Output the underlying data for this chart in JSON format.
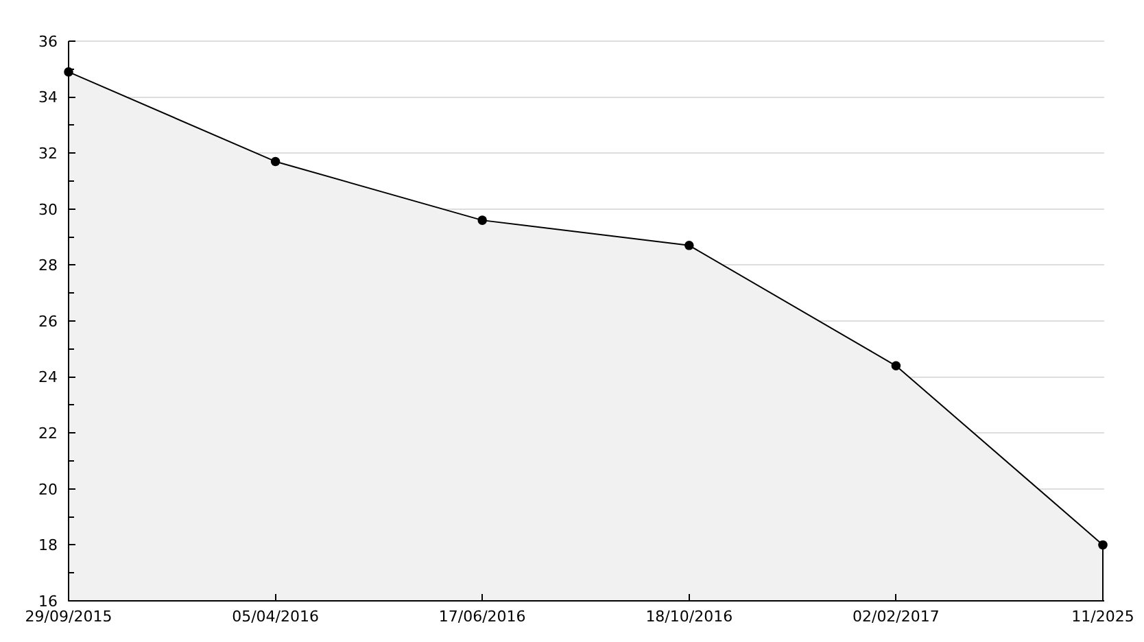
{
  "chart_data": {
    "type": "area",
    "categories": [
      "29/09/2015",
      "05/04/2016",
      "17/06/2016",
      "18/10/2016",
      "02/02/2017",
      "11/2025"
    ],
    "series": [
      {
        "color": "#f1f1f1",
        "values": [
          34.9,
          31.7,
          29.6,
          28.7,
          24.4,
          18.0
        ]
      }
    ],
    "ylim": [
      16,
      36
    ],
    "yticks": [
      16,
      {
        "value": 17,
        "label": null
      },
      18,
      {
        "value": 19,
        "label": null
      },
      20,
      {
        "value": 21,
        "label": null
      },
      22,
      {
        "value": 23,
        "label": null
      },
      24,
      {
        "value": 25,
        "label": null
      },
      26,
      {
        "value": 27,
        "label": null
      },
      28,
      {
        "value": 29,
        "label": null
      },
      30,
      {
        "value": 31,
        "label": null
      },
      32,
      {
        "value": 33,
        "label": null
      },
      34,
      {
        "value": 35,
        "label": null
      },
      36
    ],
    "grid": "y",
    "marker": "circle"
  }
}
